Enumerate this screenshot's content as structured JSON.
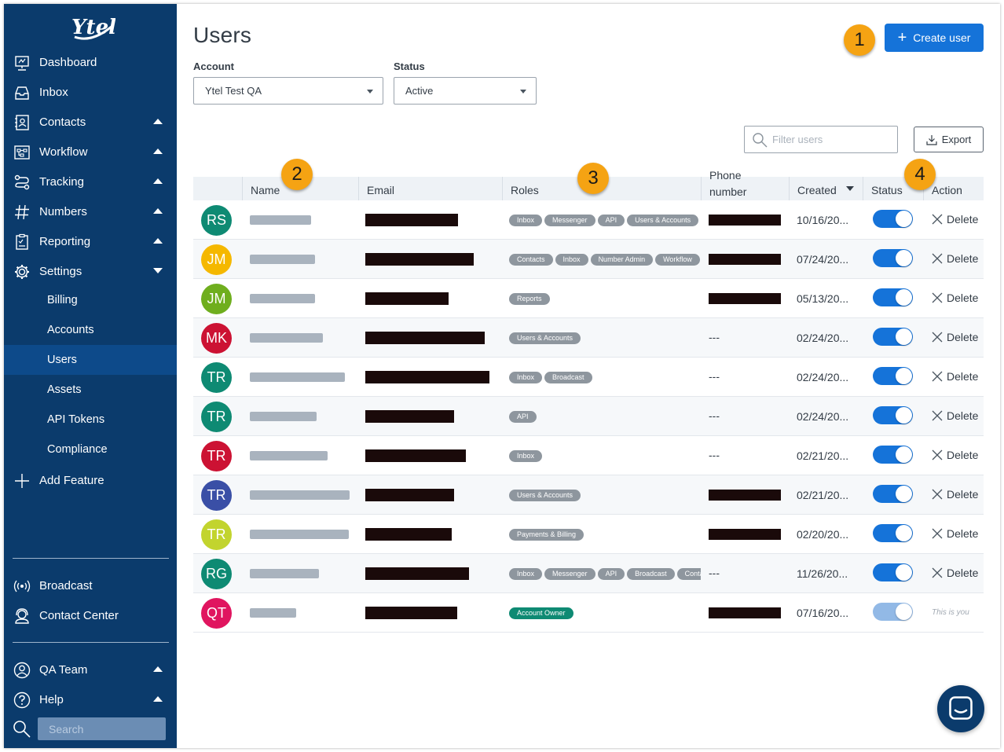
{
  "sidebar": {
    "brand": "Ytel",
    "nav": [
      {
        "label": "Dashboard",
        "icon": "dashboard-icon"
      },
      {
        "label": "Inbox",
        "icon": "inbox-icon"
      },
      {
        "label": "Contacts",
        "icon": "contacts-icon"
      },
      {
        "label": "Workflow",
        "icon": "workflow-icon"
      },
      {
        "label": "Tracking",
        "icon": "tracking-icon"
      },
      {
        "label": "Numbers",
        "icon": "hash-icon"
      },
      {
        "label": "Reporting",
        "icon": "reporting-icon"
      },
      {
        "label": "Settings",
        "icon": "gear-icon"
      }
    ],
    "settings_sub": [
      "Billing",
      "Accounts",
      "Users",
      "Assets",
      "API Tokens",
      "Compliance"
    ],
    "active_sub": "Users",
    "add_feature": "Add Feature",
    "bottom": [
      {
        "label": "Broadcast",
        "icon": "broadcast-icon"
      },
      {
        "label": "Contact Center",
        "icon": "headset-icon"
      }
    ],
    "account": [
      {
        "label": "QA Team",
        "icon": "user-circle-icon"
      },
      {
        "label": "Help",
        "icon": "help-icon"
      }
    ],
    "search_placeholder": "Search"
  },
  "page": {
    "title": "Users",
    "create_user": "Create user",
    "filters": {
      "account_label": "Account",
      "account_value": "Ytel Test QA",
      "status_label": "Status",
      "status_value": "Active"
    },
    "filter_placeholder": "Filter users",
    "export": "Export"
  },
  "table": {
    "columns": [
      "Name",
      "Email",
      "Roles",
      "Phone number",
      "Created",
      "Status",
      "Action"
    ],
    "delete_label": "Delete",
    "self_label": "This is you",
    "rows": [
      {
        "initials": "RS",
        "color": "#0e8a73",
        "roles": [
          "Inbox",
          "Messenger",
          "API",
          "Users & Accounts"
        ],
        "phone": "redacted",
        "created": "10/16/20...",
        "status_on": true,
        "self": false
      },
      {
        "initials": "JM",
        "color": "#f5b800",
        "roles": [
          "Contacts",
          "Inbox",
          "Number Admin",
          "Workflow"
        ],
        "phone": "redacted",
        "created": "07/24/20...",
        "status_on": true,
        "self": false
      },
      {
        "initials": "JM",
        "color": "#6fae1e",
        "roles": [
          "Reports"
        ],
        "phone": "redacted",
        "created": "05/13/20...",
        "status_on": true,
        "self": false
      },
      {
        "initials": "MK",
        "color": "#cc1233",
        "roles": [
          "Users & Accounts"
        ],
        "phone": "---",
        "created": "02/24/20...",
        "status_on": true,
        "self": false
      },
      {
        "initials": "TR",
        "color": "#0e8a73",
        "roles": [
          "Inbox",
          "Broadcast"
        ],
        "phone": "---",
        "created": "02/24/20...",
        "status_on": true,
        "self": false
      },
      {
        "initials": "TR",
        "color": "#0e8a73",
        "roles": [
          "API"
        ],
        "phone": "---",
        "created": "02/24/20...",
        "status_on": true,
        "self": false
      },
      {
        "initials": "TR",
        "color": "#cc1233",
        "roles": [
          "Inbox"
        ],
        "phone": "---",
        "created": "02/21/20...",
        "status_on": true,
        "self": false
      },
      {
        "initials": "TR",
        "color": "#3a4fa6",
        "roles": [
          "Users & Accounts"
        ],
        "phone": "redacted",
        "created": "02/21/20...",
        "status_on": true,
        "self": false
      },
      {
        "initials": "TR",
        "color": "#c2d42e",
        "roles": [
          "Payments & Billing"
        ],
        "phone": "redacted",
        "created": "02/20/20...",
        "status_on": true,
        "self": false
      },
      {
        "initials": "RG",
        "color": "#0e8a73",
        "roles": [
          "Inbox",
          "Messenger",
          "API",
          "Broadcast",
          "Contacts"
        ],
        "phone": "---",
        "created": "11/26/20...",
        "status_on": true,
        "self": false
      },
      {
        "initials": "QT",
        "color": "#e0155f",
        "roles": [
          "Account Owner"
        ],
        "phone": "redacted",
        "created": "07/16/20...",
        "status_on": true,
        "self": true
      }
    ]
  },
  "callouts": [
    "1",
    "2",
    "3",
    "4"
  ]
}
